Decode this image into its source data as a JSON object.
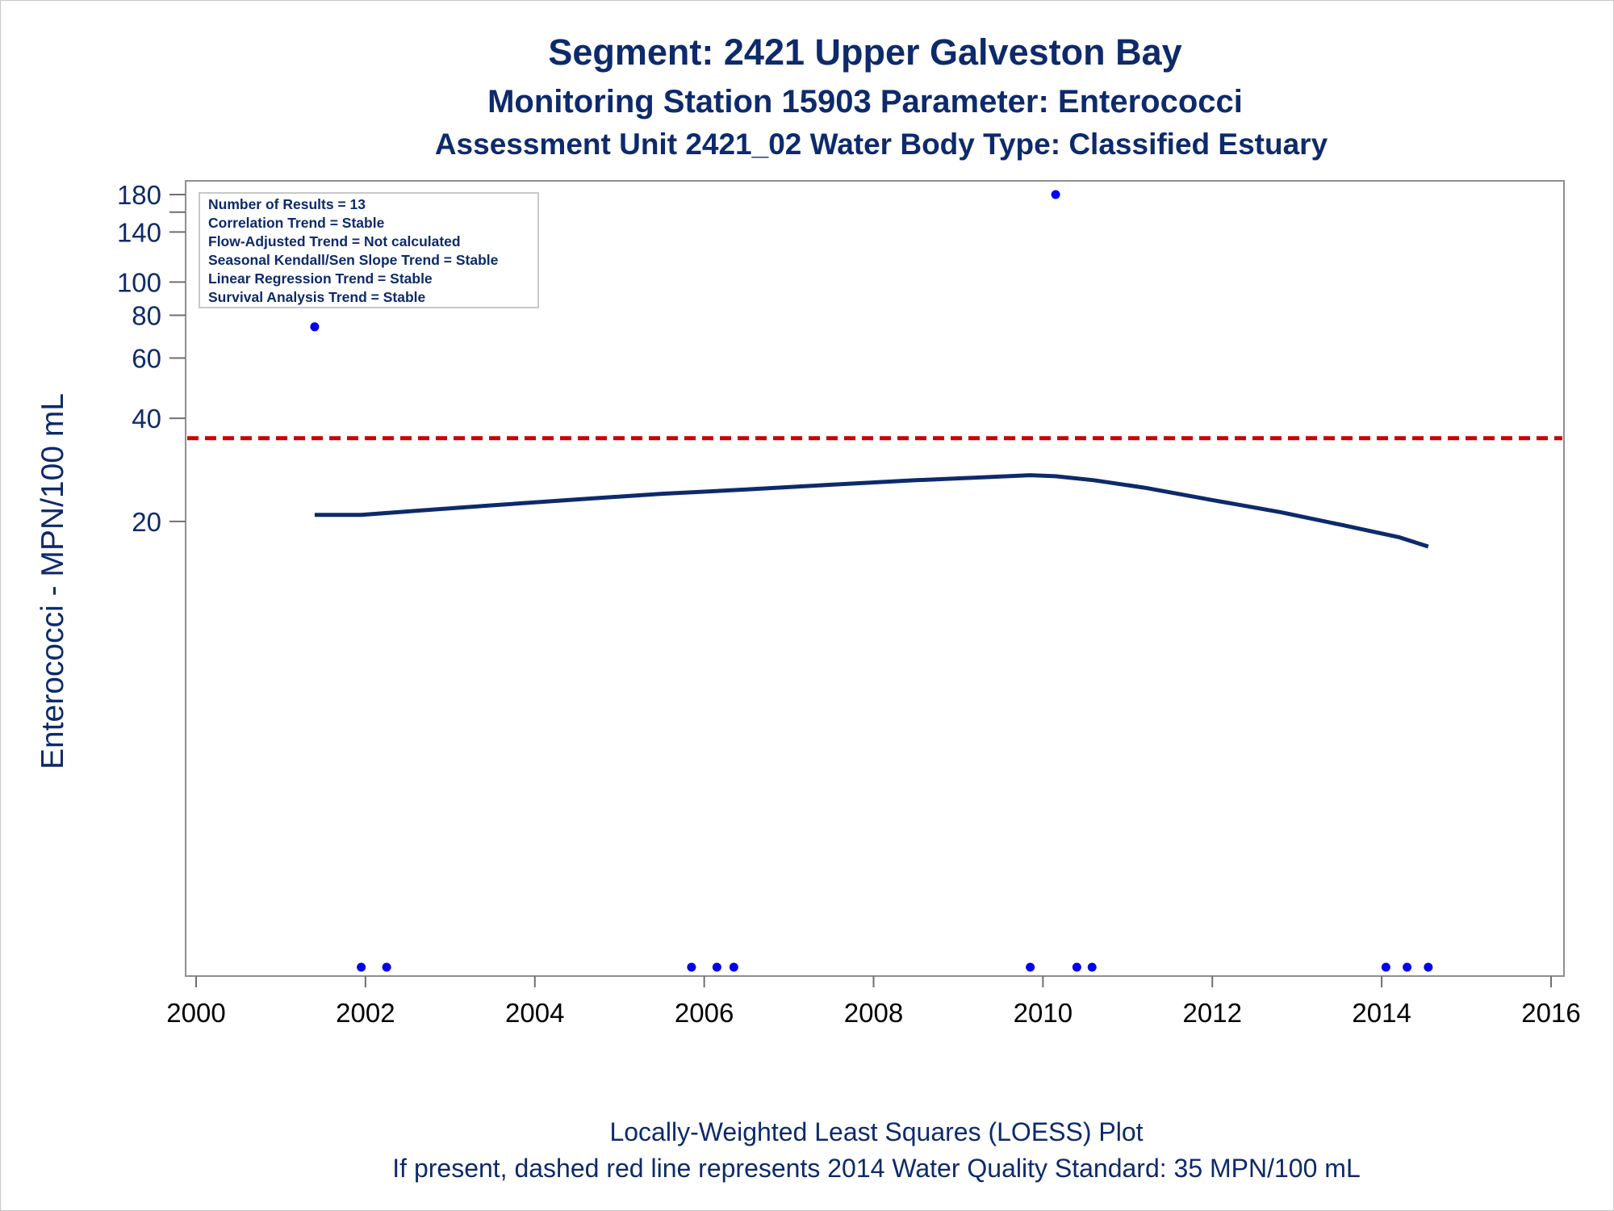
{
  "chart_data": {
    "type": "scatter",
    "title": "Segment: 2421  Upper Galveston Bay",
    "subtitle": "Monitoring Station 15903 Parameter: Enterococci",
    "subtitle2": "Assessment Unit 2421_02   Water Body Type: Classified Estuary",
    "ylabel": "Enterococci - MPN/100 mL",
    "xlabel": "",
    "footnote1": "Locally-Weighted Least Squares (LOESS) Plot",
    "footnote2": "If present, dashed red line represents 2014 Water Quality Standard: 35 MPN/100 mL",
    "y_scale": "log",
    "xlim": [
      2000,
      2016.2
    ],
    "ylim": [
      1,
      185
    ],
    "x_ticks": [
      2000,
      2002,
      2004,
      2006,
      2008,
      2010,
      2012,
      2014,
      2016
    ],
    "x_tick_labels": [
      "2000",
      "2002",
      "2004",
      "2006",
      "2008",
      "2010",
      "2012",
      "2014",
      "2016"
    ],
    "y_ticks": [
      20,
      40,
      60,
      80,
      100,
      140,
      180
    ],
    "y_tick_labels": [
      "20",
      "40",
      "60",
      "80",
      "100",
      "140",
      "180"
    ],
    "y_minor_ticks": [
      160
    ],
    "stats_box": [
      "Number of Results = 13",
      "Correlation Trend = Stable",
      "Flow-Adjusted Trend = Not calculated",
      "Seasonal Kendall/Sen Slope Trend = Stable",
      "Linear Regression Trend = Stable",
      "Survival Analysis Trend = Stable"
    ],
    "standard_line": {
      "value": 35,
      "color": "#cc0000",
      "style": "dashed"
    },
    "series": [
      {
        "kind": "points",
        "color": "#0000ee",
        "points": [
          {
            "x": 2001.4,
            "y": 74
          },
          {
            "x": 2001.95,
            "y": 1
          },
          {
            "x": 2002.25,
            "y": 1
          },
          {
            "x": 2005.85,
            "y": 1
          },
          {
            "x": 2006.15,
            "y": 1
          },
          {
            "x": 2006.35,
            "y": 1
          },
          {
            "x": 2009.85,
            "y": 1
          },
          {
            "x": 2010.15,
            "y": 180
          },
          {
            "x": 2010.4,
            "y": 1
          },
          {
            "x": 2010.58,
            "y": 1
          },
          {
            "x": 2014.05,
            "y": 1
          },
          {
            "x": 2014.3,
            "y": 1
          },
          {
            "x": 2014.55,
            "y": 1
          }
        ]
      },
      {
        "kind": "loess",
        "color": "#0d2a6b",
        "points": [
          {
            "x": 2001.4,
            "y": 20.9
          },
          {
            "x": 2001.95,
            "y": 20.9
          },
          {
            "x": 2002.5,
            "y": 21.4
          },
          {
            "x": 2003.5,
            "y": 22.3
          },
          {
            "x": 2004.5,
            "y": 23.2
          },
          {
            "x": 2005.5,
            "y": 24.1
          },
          {
            "x": 2006.5,
            "y": 24.8
          },
          {
            "x": 2007.5,
            "y": 25.6
          },
          {
            "x": 2008.5,
            "y": 26.4
          },
          {
            "x": 2009.85,
            "y": 27.3
          },
          {
            "x": 2010.15,
            "y": 27.1
          },
          {
            "x": 2010.6,
            "y": 26.4
          },
          {
            "x": 2011.2,
            "y": 25.1
          },
          {
            "x": 2012.0,
            "y": 23.1
          },
          {
            "x": 2012.8,
            "y": 21.3
          },
          {
            "x": 2013.5,
            "y": 19.6
          },
          {
            "x": 2014.2,
            "y": 18.0
          },
          {
            "x": 2014.55,
            "y": 16.9
          }
        ]
      }
    ]
  }
}
